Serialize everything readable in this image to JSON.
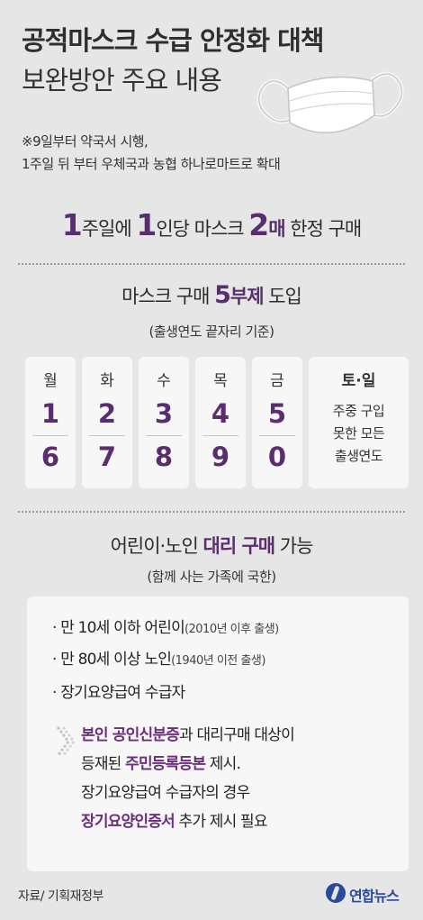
{
  "header": {
    "title_line1": "공적마스크 수급 안정화 대책",
    "title_line2": "보완방안 주요 내용",
    "note_line1": "※9일부터 약국서 시행,",
    "note_line2": "1주일 뒤 부터 우체국과 농협 하나로마트로 확대"
  },
  "headline": {
    "num1": "1",
    "text1": "주일에 ",
    "num2": "1",
    "text2": "인당 마스크 ",
    "num3": "2",
    "em": "매",
    "text3": " 한정 구매"
  },
  "section1": {
    "title_pre": "마스크 구매 ",
    "title_num": "5",
    "title_em": "부제",
    "title_post": " 도입",
    "subtitle": "(출생연도 끝자리 기준)",
    "days": [
      {
        "day": "월",
        "n1": "1",
        "n2": "6"
      },
      {
        "day": "화",
        "n1": "2",
        "n2": "7"
      },
      {
        "day": "수",
        "n1": "3",
        "n2": "8"
      },
      {
        "day": "목",
        "n1": "4",
        "n2": "9"
      },
      {
        "day": "금",
        "n1": "5",
        "n2": "0"
      }
    ],
    "weekend": {
      "day": "토·일",
      "line1": "주중 구입",
      "line2": "못한 모든",
      "line3": "출생연도"
    }
  },
  "section2": {
    "title_pre": "어린이·노인 ",
    "title_em": "대리 구매",
    "title_post": " 가능",
    "subtitle": "(함께 사는 가족에 국한)",
    "items": [
      {
        "main": "· 만 10세 이하 어린이",
        "small": "(2010년 이후 출생)"
      },
      {
        "main": "· 만 80세 이상 노인",
        "small": "(1940년 이전 출생)"
      },
      {
        "main": "· 장기요양급여 수급자",
        "small": ""
      }
    ],
    "para": {
      "l1_hl": "본인 공인신분증",
      "l1_rest": "과 대리구매 대상이",
      "l2_pre": "등재된 ",
      "l2_hl": "주민등록등본",
      "l2_rest": " 제시.",
      "l3": "장기요양급여 수급자의 경우",
      "l4_hl": "장기요양인증서",
      "l4_rest": " 추가 제시 필요"
    }
  },
  "footer": {
    "source": "자료/ 기획재정부",
    "logo": "연합뉴스"
  },
  "colors": {
    "accent": "#5a2e6e",
    "background": "#e6e6e6",
    "panel": "#f7f7f7",
    "logo": "#2a4a9a"
  }
}
